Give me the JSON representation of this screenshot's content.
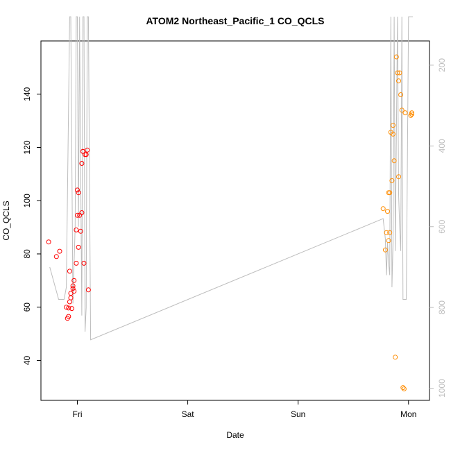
{
  "chart_data": {
    "type": "scatter",
    "title": "ATOM2 Northeast_Pacific_1 CO_QCLS",
    "xlabel": "Date",
    "ylabel": "CO_QCLS",
    "x_ticks": [
      "Fri",
      "Sat",
      "Sun",
      "Mon"
    ],
    "x_tick_positions_days": [
      0,
      1,
      2,
      3
    ],
    "x_range_days": [
      -0.33,
      3.19
    ],
    "ylim": [
      25,
      160
    ],
    "y_ticks": [
      40,
      60,
      80,
      100,
      120,
      140
    ],
    "y2_label": "",
    "y2_ticks": [
      200,
      400,
      600,
      800,
      1000
    ],
    "y2_range_reversed": [
      140,
      1030
    ],
    "grid": false,
    "colors": {
      "series_red": "#ff0000",
      "series_orange": "#ff8c00",
      "altitude_line": "#bdbdbd",
      "y2_ticks": "#bdbdbd",
      "axes": "#000000"
    },
    "series": [
      {
        "color": "red",
        "x_days": [
          -0.26,
          -0.19,
          -0.16,
          -0.09,
          -0.1,
          -0.08,
          -0.08,
          -0.07,
          -0.07,
          -0.06,
          -0.06,
          -0.05,
          -0.04,
          -0.04,
          -0.03,
          -0.03,
          -0.01,
          -0.01,
          0.0,
          0.0,
          0.01,
          0.01,
          0.02,
          0.03,
          0.04,
          0.04,
          0.05,
          0.05,
          0.06,
          0.07,
          0.08,
          0.09,
          0.1
        ],
        "y": [
          84.5,
          79,
          81,
          55.8,
          60,
          56.5,
          59.7,
          73.5,
          62,
          63.5,
          65.2,
          59.5,
          68,
          67,
          70,
          66,
          76.5,
          89,
          94.5,
          104,
          103,
          82.5,
          94.5,
          88.5,
          95.5,
          114,
          118.5,
          118.5,
          76.5,
          117.3,
          117.3,
          119,
          66.5
        ]
      },
      {
        "color": "orange",
        "x_days": [
          2.77,
          2.79,
          2.8,
          2.81,
          2.82,
          2.82,
          2.83,
          2.83,
          2.84,
          2.85,
          2.86,
          2.86,
          2.87,
          2.88,
          2.89,
          2.9,
          2.91,
          2.91,
          2.92,
          2.93,
          2.94,
          2.95,
          2.96,
          2.97,
          3.02,
          3.03,
          3.03
        ],
        "y": [
          97,
          81.5,
          88,
          96,
          85,
          103,
          88,
          103,
          125.7,
          107.5,
          128.3,
          125,
          115,
          41.2,
          154,
          148,
          145,
          109,
          148,
          139.8,
          134,
          29.8,
          29.3,
          133,
          132,
          133,
          132.5
        ]
      }
    ],
    "altitude_line": {
      "x_days": [
        -0.25,
        -0.17,
        -0.12,
        -0.1,
        -0.07,
        -0.06,
        -0.04,
        -0.02,
        -0.01,
        0.0,
        0.01,
        0.02,
        0.02,
        0.04,
        0.05,
        0.06,
        0.06,
        0.07,
        0.08,
        0.09,
        0.1,
        0.1,
        0.12,
        2.77,
        2.79,
        2.8,
        2.81,
        2.82,
        2.83,
        2.84,
        2.85,
        2.86,
        2.87,
        2.88,
        2.9,
        2.91,
        2.92,
        2.93,
        2.94,
        2.95,
        2.96,
        2.97,
        2.98,
        3.0,
        3.02,
        3.04
      ],
      "y2": [
        700,
        780,
        780,
        750,
        80,
        80,
        790,
        600,
        80,
        80,
        600,
        80,
        100,
        820,
        80,
        80,
        80,
        860,
        800,
        80,
        80,
        80,
        880,
        580,
        630,
        720,
        640,
        690,
        720,
        80,
        750,
        640,
        80,
        660,
        80,
        520,
        600,
        660,
        80,
        780,
        780,
        780,
        780,
        80,
        80,
        80
      ]
    }
  }
}
